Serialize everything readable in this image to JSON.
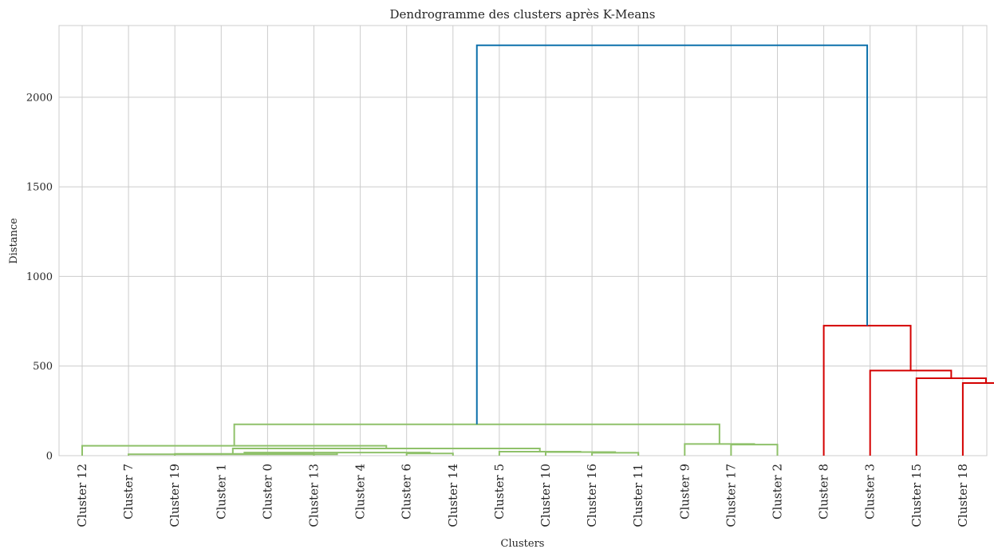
{
  "chart_data": {
    "type": "dendrogram",
    "title": "Dendrogramme des clusters après K-Means",
    "xlabel": "Clusters",
    "ylabel": "Distance",
    "ylim": [
      0,
      2400
    ],
    "yticks": [
      0,
      500,
      1000,
      1500,
      2000
    ],
    "grid": true,
    "leaves": [
      "Cluster 12",
      "Cluster 7",
      "Cluster 19",
      "Cluster 1",
      "Cluster 0",
      "Cluster 13",
      "Cluster 4",
      "Cluster 6",
      "Cluster 14",
      "Cluster 5",
      "Cluster 10",
      "Cluster 16",
      "Cluster 11",
      "Cluster 9",
      "Cluster 17",
      "Cluster 2",
      "Cluster 8",
      "Cluster 3",
      "Cluster 15",
      "Cluster 18"
    ],
    "colors": {
      "green": "#8fc16a",
      "red": "#d40000",
      "blue": "#0c70ab"
    },
    "links": [
      {
        "x": [
          2,
          2,
          5,
          5
        ],
        "y": [
          0,
          10,
          10,
          0
        ],
        "color": "green"
      },
      {
        "x": [
          7,
          7,
          8,
          8
        ],
        "y": [
          0,
          12,
          12,
          0
        ],
        "color": "green"
      },
      {
        "x": [
          3.5,
          3.5,
          7.5,
          7.5
        ],
        "y": [
          10,
          17,
          17,
          12
        ],
        "color": "green"
      },
      {
        "x": [
          1,
          1,
          5.5,
          5.5
        ],
        "y": [
          0,
          8,
          8,
          17
        ],
        "color": "green"
      },
      {
        "x": [
          11,
          11,
          12,
          12
        ],
        "y": [
          0,
          16,
          16,
          0
        ],
        "color": "green"
      },
      {
        "x": [
          10,
          10,
          11.5,
          11.5
        ],
        "y": [
          0,
          20,
          20,
          16
        ],
        "color": "green"
      },
      {
        "x": [
          9,
          9,
          10.75,
          10.75
        ],
        "y": [
          0,
          22,
          22,
          20
        ],
        "color": "green"
      },
      {
        "x": [
          3.25,
          3.25,
          9.875,
          9.875
        ],
        "y": [
          8,
          40,
          40,
          22
        ],
        "color": "green"
      },
      {
        "x": [
          0,
          0,
          6.5625,
          6.5625
        ],
        "y": [
          0,
          55,
          55,
          40
        ],
        "color": "green"
      },
      {
        "x": [
          14,
          14,
          15,
          15
        ],
        "y": [
          0,
          62,
          62,
          0
        ],
        "color": "green"
      },
      {
        "x": [
          13,
          13,
          14.5,
          14.5
        ],
        "y": [
          0,
          65,
          65,
          62
        ],
        "color": "green"
      },
      {
        "x": [
          3.28125,
          3.28125,
          13.75,
          13.75
        ],
        "y": [
          55,
          175,
          175,
          65
        ],
        "color": "green"
      },
      {
        "x": [
          19,
          19,
          20,
          20
        ],
        "y": [
          0,
          405,
          405,
          0
        ],
        "color": "red"
      },
      {
        "x": [
          18,
          18,
          19.5,
          19.5
        ],
        "y": [
          0,
          432,
          432,
          405
        ],
        "color": "red"
      },
      {
        "x": [
          17,
          17,
          18.75,
          18.75
        ],
        "y": [
          0,
          475,
          475,
          432
        ],
        "color": "red"
      },
      {
        "x": [
          16,
          16,
          17.875,
          17.875
        ],
        "y": [
          0,
          725,
          725,
          475
        ],
        "color": "red"
      },
      {
        "x": [
          8.515625,
          8.515625,
          16.9375,
          16.9375
        ],
        "y": [
          175,
          2290,
          2290,
          725
        ],
        "color": "blue"
      }
    ]
  }
}
